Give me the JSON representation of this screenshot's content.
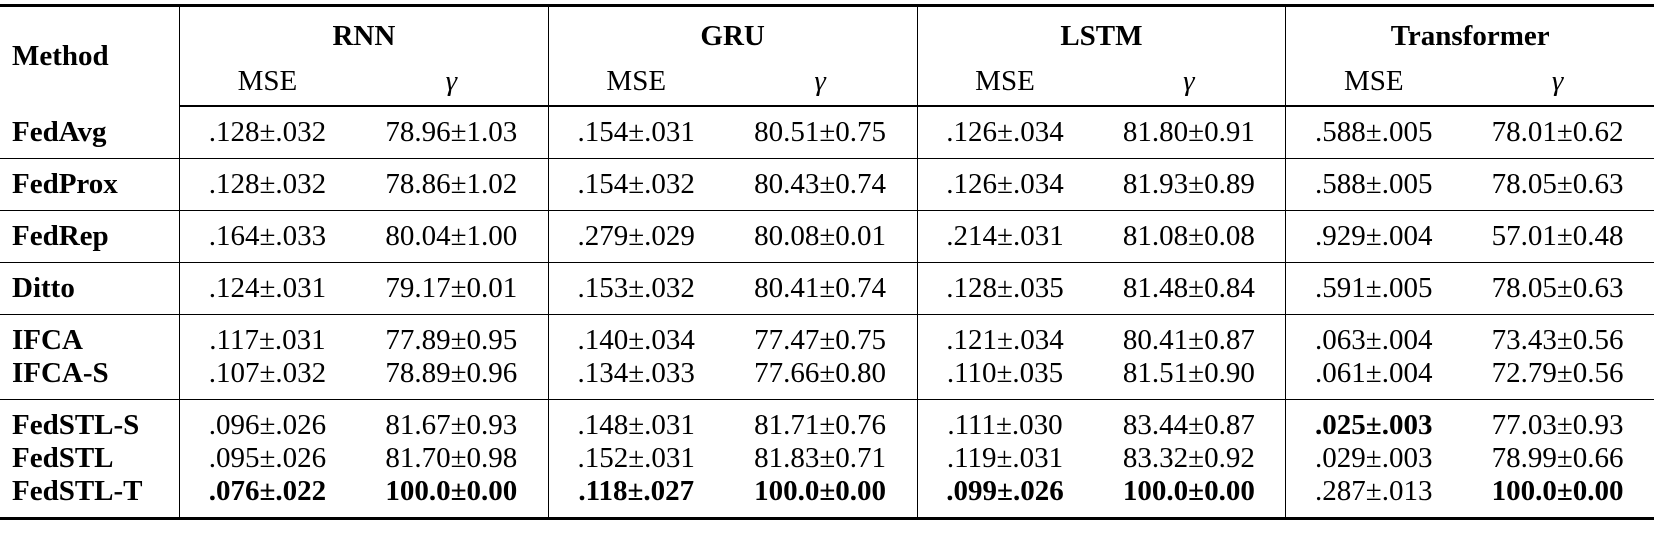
{
  "table": {
    "header": {
      "method": "Method",
      "groups": [
        {
          "name": "RNN",
          "columns": [
            "MSE",
            "γ"
          ]
        },
        {
          "name": "GRU",
          "columns": [
            "MSE",
            "γ"
          ]
        },
        {
          "name": "LSTM",
          "columns": [
            "MSE",
            "γ"
          ]
        },
        {
          "name": "Transformer",
          "columns": [
            "MSE",
            "γ"
          ]
        }
      ]
    },
    "blocks": [
      [
        {
          "method": "FedAvg",
          "cells": [
            ".128±.032",
            "78.96±1.03",
            ".154±.031",
            "80.51±0.75",
            ".126±.034",
            "81.80±0.91",
            ".588±.005",
            "78.01±0.62"
          ]
        }
      ],
      [
        {
          "method": "FedProx",
          "cells": [
            ".128±.032",
            "78.86±1.02",
            ".154±.032",
            "80.43±0.74",
            ".126±.034",
            "81.93±0.89",
            ".588±.005",
            "78.05±0.63"
          ]
        }
      ],
      [
        {
          "method": "FedRep",
          "cells": [
            ".164±.033",
            "80.04±1.00",
            ".279±.029",
            "80.08±0.01",
            ".214±.031",
            "81.08±0.08",
            ".929±.004",
            "57.01±0.48"
          ]
        }
      ],
      [
        {
          "method": "Ditto",
          "cells": [
            ".124±.031",
            "79.17±0.01",
            ".153±.032",
            "80.41±0.74",
            ".128±.035",
            "81.48±0.84",
            ".591±.005",
            "78.05±0.63"
          ]
        }
      ],
      [
        {
          "method": "IFCA",
          "cells": [
            ".117±.031",
            "77.89±0.95",
            ".140±.034",
            "77.47±0.75",
            ".121±.034",
            "80.41±0.87",
            ".063±.004",
            "73.43±0.56"
          ]
        },
        {
          "method": "IFCA-S",
          "cells": [
            ".107±.032",
            "78.89±0.96",
            ".134±.033",
            "77.66±0.80",
            ".110±.035",
            "81.51±0.90",
            ".061±.004",
            "72.79±0.56"
          ]
        }
      ],
      [
        {
          "method": "FedSTL-S",
          "cells": [
            ".096±.026",
            "81.67±0.93",
            ".148±.031",
            "81.71±0.76",
            ".111±.030",
            "83.44±0.87",
            ".025±.003",
            "77.03±0.93"
          ]
        },
        {
          "method": "FedSTL",
          "cells": [
            ".095±.026",
            "81.70±0.98",
            ".152±.031",
            "81.83±0.71",
            ".119±.031",
            "83.32±0.92",
            ".029±.003",
            "78.99±0.66"
          ]
        },
        {
          "method": "FedSTL-T",
          "cells": [
            ".076±.022",
            "100.0±0.00",
            ".118±.027",
            "100.0±0.00",
            ".099±.026",
            "100.0±0.00",
            ".287±.013",
            "100.0±0.00"
          ]
        }
      ]
    ]
  }
}
